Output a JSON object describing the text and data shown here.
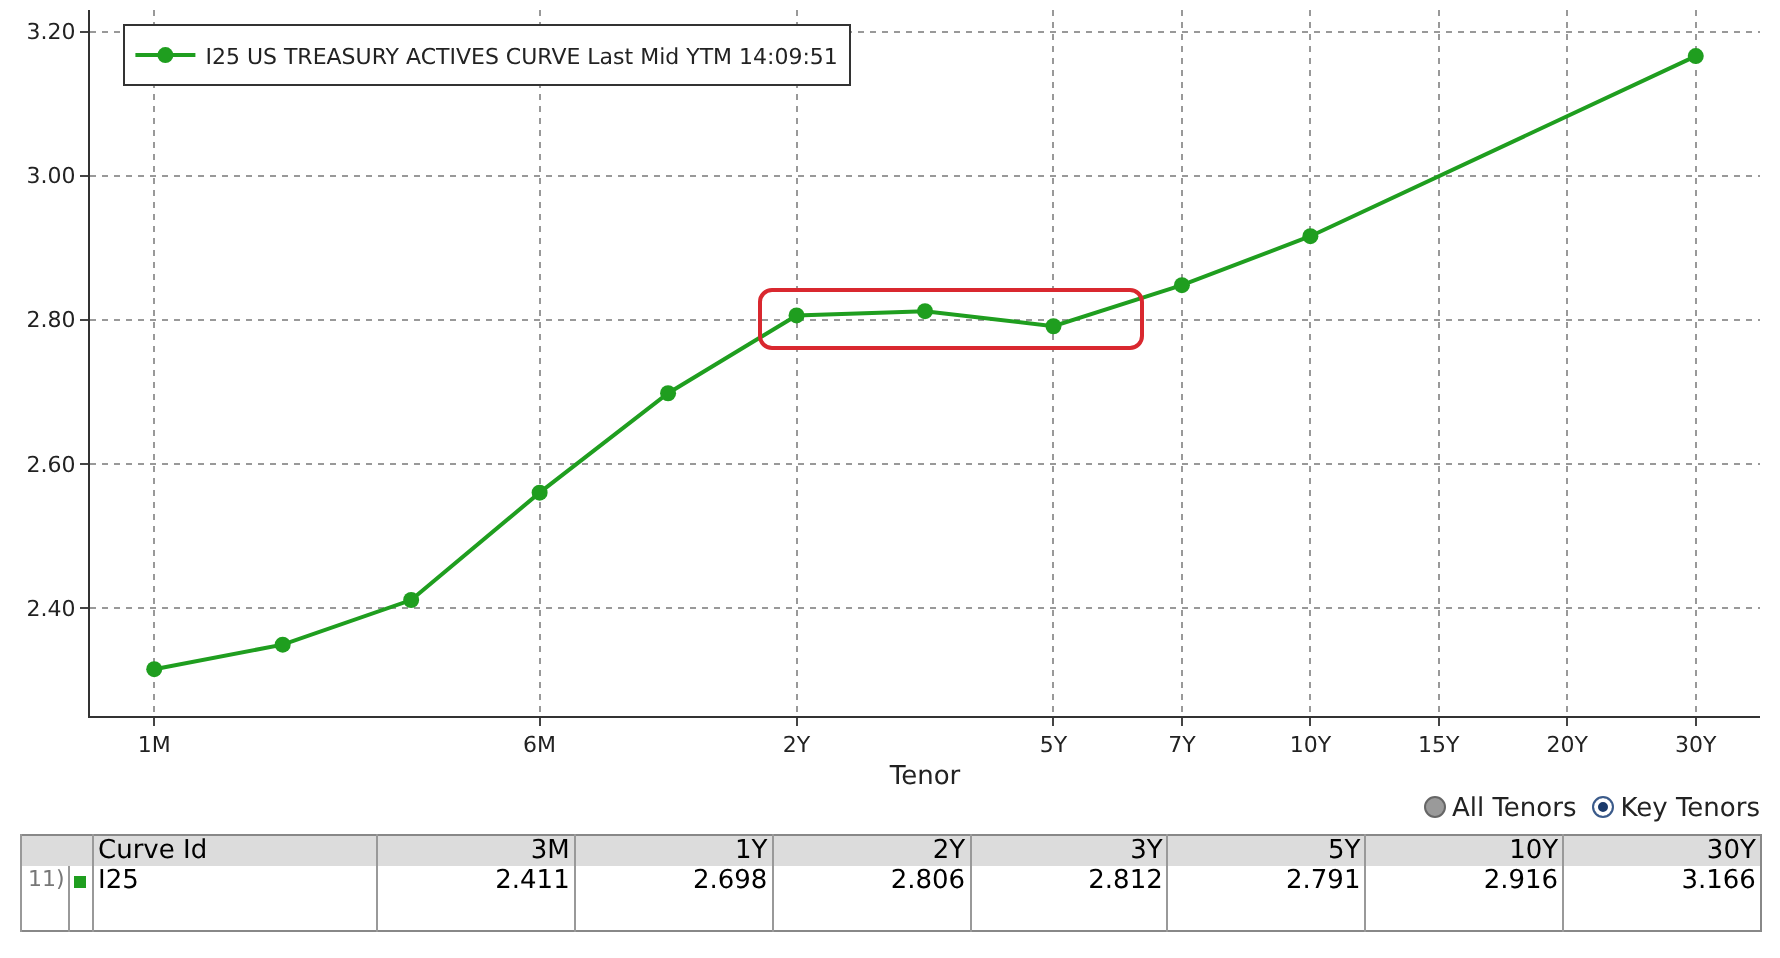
{
  "chart_data": {
    "type": "line",
    "xlabel": "Tenor",
    "categories": [
      "1M",
      null,
      null,
      "6M",
      null,
      "2Y",
      null,
      "5Y",
      "7Y",
      "10Y",
      "15Y",
      "20Y",
      "30Y"
    ],
    "series": [
      {
        "name": "I25 US TREASURY ACTIVES CURVE Last Mid YTM 14:09:51",
        "color": "#1f9e1f",
        "values": [
          2.315,
          2.349,
          2.411,
          2.56,
          2.698,
          2.806,
          2.812,
          2.791,
          2.848,
          2.916,
          null,
          null,
          3.166
        ]
      }
    ],
    "ylim": [
      2.25,
      3.23
    ],
    "yticks": [
      {
        "value": 2.4,
        "label": "2.40"
      },
      {
        "value": 2.6,
        "label": "2.60"
      },
      {
        "value": 2.8,
        "label": "2.80"
      },
      {
        "value": 3.0,
        "label": "3.00"
      },
      {
        "value": 3.2,
        "label": "3.20"
      }
    ],
    "grid": true,
    "legend": "top left",
    "marker": "circle",
    "line_style": "solid",
    "annotations": [
      "11)",
      "Curve Id",
      "I25",
      "All Tenors",
      "Key Tenors",
      "3M",
      "1Y",
      "2Y",
      "3Y",
      "5Y",
      "10Y",
      "30Y",
      "2.411",
      "2.698",
      "2.806",
      "2.812",
      "2.791",
      "2.916",
      "3.166"
    ]
  }
}
